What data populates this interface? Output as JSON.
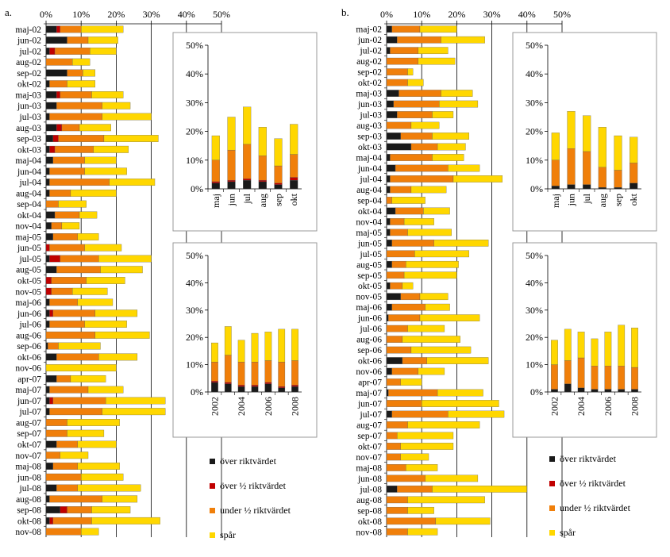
{
  "colors": {
    "over": "#1a1a1a",
    "over_half": "#c00000",
    "under_half": "#f07f0a",
    "trace": "#ffd700"
  },
  "legend": {
    "over": "över riktvärdet",
    "over_half": "över ½ riktvärdet",
    "under_half": "under ½ riktvärdet",
    "trace": "spår"
  },
  "chart_data": [
    {
      "id": "a-main",
      "panel_label": "a.",
      "type": "bar",
      "orientation": "horizontal",
      "stacked": true,
      "xlim": [
        0,
        50
      ],
      "xticks": [
        "0%",
        "10%",
        "20%",
        "30%",
        "40%",
        "50%"
      ],
      "categories": [
        "maj-02",
        "jun-02",
        "jul-02",
        "aug-02",
        "sep-02",
        "okt-02",
        "maj-03",
        "jun-03",
        "jul-03",
        "aug-03",
        "sep-03",
        "okt-03",
        "maj-04",
        "jun-04",
        "jul-04",
        "aug-04",
        "sep-04",
        "okt-04",
        "nov-04",
        "maj-05",
        "jun-05",
        "jul-05",
        "aug-05",
        "okt-05",
        "nov-05",
        "maj-06",
        "jun-06",
        "jul-06",
        "aug-06",
        "sep-06",
        "okt-06",
        "nov-06",
        "apr-07",
        "maj-07",
        "jun-07",
        "jul-07",
        "aug-07",
        "sep-07",
        "okt-07",
        "nov-07",
        "maj-08",
        "jun-08",
        "jul-08",
        "aug-08",
        "sep-08",
        "okt-08",
        "nov-08"
      ],
      "series": [
        {
          "key": "over",
          "name": "över riktvärdet",
          "values": [
            3,
            6,
            1,
            0,
            6,
            1,
            3,
            3,
            1,
            3,
            2,
            1,
            2,
            1,
            1,
            1,
            0,
            2.5,
            1.5,
            2,
            0,
            1,
            3,
            0,
            0,
            1,
            1,
            1,
            0,
            0.5,
            3,
            0,
            3,
            1,
            1,
            1,
            0,
            0,
            3,
            0,
            2,
            0,
            3,
            1,
            4,
            1,
            0
          ]
        },
        {
          "key": "over_half",
          "name": "över ½ riktvärdet",
          "values": [
            1,
            0,
            1.5,
            0,
            0,
            0,
            1,
            0,
            0,
            1.5,
            1.5,
            1.5,
            0,
            0,
            0,
            0,
            0,
            0,
            0,
            0,
            1,
            3,
            0,
            1.5,
            1.5,
            0,
            1,
            0,
            0,
            0,
            0,
            0,
            0,
            0,
            1,
            0,
            0,
            0,
            0,
            0,
            0,
            0,
            0,
            0,
            2,
            1,
            0
          ]
        },
        {
          "key": "under_half",
          "name": "under ½ riktvärdet",
          "values": [
            6,
            6,
            10,
            7.5,
            4.5,
            5,
            9,
            13,
            15,
            5,
            13,
            11,
            9,
            10,
            17,
            6,
            3.5,
            7,
            3,
            7,
            10,
            11,
            12.5,
            10,
            6,
            8,
            12,
            10,
            14,
            3,
            12,
            0,
            4,
            11,
            15,
            15,
            6,
            6,
            6,
            4,
            7,
            10,
            6,
            15,
            7,
            11,
            10
          ]
        },
        {
          "key": "trace",
          "name": "spår",
          "values": [
            12,
            8.5,
            7.5,
            5,
            3.5,
            8,
            9,
            8,
            14,
            9,
            15.5,
            10,
            9,
            12,
            13,
            13,
            8,
            5,
            5,
            6,
            10.5,
            15,
            12,
            11,
            10,
            10,
            12,
            12,
            15.5,
            12,
            11,
            20,
            10,
            10,
            17,
            18,
            15,
            10.5,
            11,
            8,
            12,
            12,
            18,
            10,
            11,
            19.5,
            5
          ]
        }
      ]
    },
    {
      "id": "b-main",
      "panel_label": "b.",
      "type": "bar",
      "orientation": "horizontal",
      "stacked": true,
      "xlim": [
        0,
        50
      ],
      "xticks": [
        "0%",
        "10%",
        "20%",
        "30%",
        "40%",
        "50%"
      ],
      "categories": [
        "maj-02",
        "jun-02",
        "jul-02",
        "aug-02",
        "sep-02",
        "okt-02",
        "maj-03",
        "jun-03",
        "jul-03",
        "aug-03",
        "sep-03",
        "okt-03",
        "maj-04",
        "jun-04",
        "jul-04",
        "aug-04",
        "sep-04",
        "okt-04",
        "nov-04",
        "maj-05",
        "jun-05",
        "jul-05",
        "aug-05",
        "sep-05",
        "okt-05",
        "nov-05",
        "maj-06",
        "jun-06",
        "jul-06",
        "aug-06",
        "sep-06",
        "okt-06",
        "nov-06",
        "apr-07",
        "maj-07",
        "jun-07",
        "jul-07",
        "aug-07",
        "sep-07",
        "okt-07",
        "nov-07",
        "maj-08",
        "jun-08",
        "jul-08",
        "aug-08",
        "sep-08",
        "okt-08",
        "nov-08"
      ],
      "series": [
        {
          "key": "over",
          "name": "över riktvärdet",
          "values": [
            1.5,
            3,
            1,
            0,
            0,
            0,
            3.5,
            2,
            3,
            0,
            4,
            7,
            1,
            2.5,
            1,
            1,
            0,
            2.5,
            1,
            1,
            1.5,
            0,
            1.5,
            0,
            1,
            4,
            1.5,
            0.5,
            0,
            0,
            0,
            4.5,
            1.5,
            0,
            0.5,
            0,
            1.5,
            0,
            0,
            0,
            0,
            0,
            0,
            3,
            0,
            0,
            0,
            0
          ]
        },
        {
          "key": "over_half",
          "name": "över ½ riktvärdet",
          "values": [
            0,
            0,
            0,
            0,
            0,
            0,
            0,
            0,
            0,
            0,
            0,
            0,
            0,
            0,
            0,
            0,
            0,
            0,
            0,
            0,
            0,
            0,
            0,
            0,
            0,
            0,
            0,
            0,
            0,
            0,
            0,
            0,
            0,
            0,
            0,
            0,
            0,
            0,
            0,
            0,
            0,
            0,
            0,
            0,
            0,
            0,
            0,
            0
          ]
        },
        {
          "key": "under_half",
          "name": "under ½ riktvärdet",
          "values": [
            8,
            12.5,
            8,
            9,
            6,
            6,
            12,
            13,
            10,
            7,
            9,
            7.5,
            12,
            15,
            18,
            6,
            1.5,
            8,
            4,
            5,
            12,
            8,
            4,
            5,
            3.5,
            5.5,
            9.5,
            9,
            6,
            4.5,
            7,
            7,
            7.5,
            4,
            14,
            10,
            16,
            6,
            3,
            4,
            4,
            5.5,
            11,
            10,
            6,
            6,
            14,
            6
          ]
        },
        {
          "key": "trace",
          "name": "spår",
          "values": [
            10.5,
            12.5,
            8.5,
            10.5,
            1.5,
            4.5,
            9,
            11,
            6,
            8,
            10.5,
            8,
            9,
            9,
            14,
            10,
            9.5,
            7.5,
            8.5,
            12.5,
            15.5,
            15.5,
            15,
            15,
            3,
            8,
            7,
            17,
            10.5,
            16.5,
            17,
            17.5,
            7.5,
            6,
            13,
            22,
            16,
            20.5,
            16,
            15,
            8,
            9,
            15,
            27,
            22,
            7.5,
            15.5,
            8.5
          ]
        }
      ]
    },
    {
      "id": "a-inset-months",
      "type": "bar",
      "stacked": true,
      "ylim": [
        0,
        50
      ],
      "yticks": [
        "0%",
        "10%",
        "20%",
        "30%",
        "40%",
        "50%"
      ],
      "categories": [
        "maj",
        "jun",
        "jul",
        "aug",
        "sep",
        "okt"
      ],
      "series": [
        {
          "key": "over",
          "name": "över riktvärdet",
          "values": [
            2,
            2.5,
            3,
            2.5,
            1.5,
            3
          ]
        },
        {
          "key": "over_half",
          "name": "över ½ riktvärdet",
          "values": [
            0.5,
            0.5,
            0.5,
            0.5,
            0.5,
            1
          ]
        },
        {
          "key": "under_half",
          "name": "under ½ riktvärdet",
          "values": [
            7.5,
            10.5,
            12,
            8.5,
            6,
            8
          ]
        },
        {
          "key": "trace",
          "name": "spår",
          "values": [
            8.5,
            11.5,
            13,
            10,
            9.5,
            10.5
          ]
        }
      ]
    },
    {
      "id": "a-inset-years",
      "type": "bar",
      "stacked": true,
      "ylim": [
        0,
        50
      ],
      "yticks": [
        "0%",
        "10%",
        "20%",
        "30%",
        "40%",
        "50%"
      ],
      "categories": [
        "2002",
        "2003",
        "2004",
        "2005",
        "2006",
        "2007",
        "2008"
      ],
      "xtick_labels": [
        "2002",
        "",
        "2004",
        "",
        "2006",
        "",
        "2008"
      ],
      "series": [
        {
          "key": "over",
          "name": "över riktvärdet",
          "values": [
            3.5,
            3,
            2,
            2,
            3,
            1.5,
            2
          ]
        },
        {
          "key": "over_half",
          "name": "över ½ riktvärdet",
          "values": [
            0.5,
            0.5,
            0.5,
            0.5,
            0.5,
            0.5,
            0.5
          ]
        },
        {
          "key": "under_half",
          "name": "under ½ riktvärdet",
          "values": [
            7,
            10,
            8.5,
            8.5,
            8,
            9,
            9
          ]
        },
        {
          "key": "trace",
          "name": "spår",
          "values": [
            7,
            10.5,
            8,
            10.5,
            10.5,
            12,
            11.5
          ]
        }
      ]
    },
    {
      "id": "b-inset-months",
      "type": "bar",
      "stacked": true,
      "ylim": [
        0,
        50
      ],
      "yticks": [
        "0%",
        "10%",
        "20%",
        "30%",
        "40%",
        "50%"
      ],
      "categories": [
        "maj",
        "jun",
        "jul",
        "aug",
        "sep",
        "okt"
      ],
      "series": [
        {
          "key": "over",
          "name": "över riktvärdet",
          "values": [
            1,
            1.5,
            1.5,
            0.5,
            0.5,
            2
          ]
        },
        {
          "key": "over_half",
          "name": "över ½ riktvärdet",
          "values": [
            0,
            0,
            0,
            0,
            0,
            0
          ]
        },
        {
          "key": "under_half",
          "name": "under ½ riktvärdet",
          "values": [
            9,
            12.5,
            11.5,
            7,
            6,
            7
          ]
        },
        {
          "key": "trace",
          "name": "spår",
          "values": [
            9.5,
            13,
            12.5,
            14,
            12,
            9
          ]
        }
      ]
    },
    {
      "id": "b-inset-years",
      "type": "bar",
      "stacked": true,
      "ylim": [
        0,
        50
      ],
      "yticks": [
        "0%",
        "10%",
        "20%",
        "30%",
        "40%",
        "50%"
      ],
      "categories": [
        "2002",
        "2003",
        "2004",
        "2005",
        "2006",
        "2007",
        "2008"
      ],
      "xtick_labels": [
        "2002",
        "",
        "2004",
        "",
        "2006",
        "",
        "2008"
      ],
      "series": [
        {
          "key": "over",
          "name": "över riktvärdet",
          "values": [
            1,
            3,
            1.5,
            1,
            1,
            1,
            1
          ]
        },
        {
          "key": "over_half",
          "name": "över ½ riktvärdet",
          "values": [
            0,
            0,
            0,
            0,
            0,
            0,
            0
          ]
        },
        {
          "key": "under_half",
          "name": "under ½ riktvärdet",
          "values": [
            9,
            8.5,
            11,
            8.5,
            8.5,
            8.5,
            8
          ]
        },
        {
          "key": "trace",
          "name": "spår",
          "values": [
            9,
            11.5,
            9.5,
            10,
            12.5,
            15,
            14.5
          ]
        }
      ]
    }
  ]
}
